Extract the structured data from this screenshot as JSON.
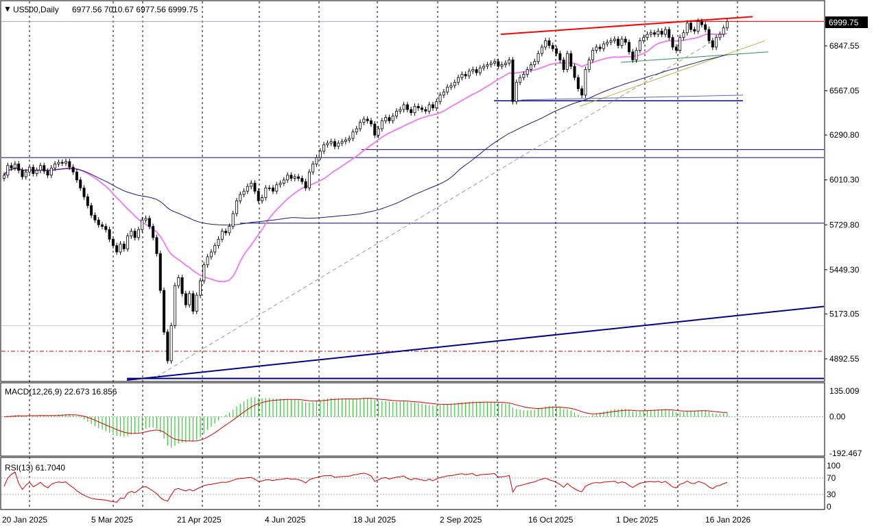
{
  "chart_data": {
    "type": "candlestick",
    "symbol_label": "US500,Daily",
    "ohlc_label": "6977.56 7010.67 6977.56 6999.75",
    "current_price": "6999.75",
    "price_axis_ticks": [
      "6847.55",
      "6567.05",
      "6290.80",
      "6010.30",
      "5729.80",
      "5449.30",
      "5173.05",
      "4892.55"
    ],
    "date_axis_ticks": [
      "20 Jan 2025",
      "5 Mar 2025",
      "21 Apr 2025",
      "4 Jun 2025",
      "18 Jul 2025",
      "2 Sep 2025",
      "16 Oct 2025",
      "1 Dec 2025",
      "16 Jan 2026"
    ],
    "price_range": [
      4760,
      7100
    ],
    "closes": [
      6040,
      6100,
      6085,
      6110,
      6070,
      6030,
      6060,
      6090,
      6050,
      6070,
      6100,
      6065,
      6040,
      6085,
      6110,
      6120,
      6115,
      6125,
      6090,
      6060,
      6010,
      5960,
      5905,
      5850,
      5790,
      5760,
      5730,
      5720,
      5700,
      5640,
      5600,
      5560,
      5610,
      5580,
      5660,
      5690,
      5650,
      5700,
      5760,
      5770,
      5720,
      5650,
      5550,
      5320,
      5060,
      4880,
      5100,
      5350,
      5400,
      5300,
      5230,
      5300,
      5190,
      5290,
      5380,
      5480,
      5530,
      5560,
      5600,
      5640,
      5690,
      5680,
      5720,
      5800,
      5880,
      5920,
      5940,
      5970,
      5990,
      5940,
      5880,
      5900,
      5960,
      5960,
      5940,
      5980,
      5990,
      6010,
      6040,
      6020,
      6030,
      6020,
      6000,
      5960,
      6060,
      6110,
      6150,
      6190,
      6230,
      6240,
      6250,
      6220,
      6240,
      6250,
      6260,
      6270,
      6310,
      6330,
      6370,
      6390,
      6380,
      6360,
      6290,
      6330,
      6380,
      6400,
      6380,
      6410,
      6440,
      6450,
      6480,
      6450,
      6430,
      6470,
      6460,
      6450,
      6440,
      6480,
      6460,
      6500,
      6540,
      6560,
      6590,
      6600,
      6620,
      6650,
      6670,
      6660,
      6690,
      6700,
      6680,
      6710,
      6720,
      6730,
      6740,
      6750,
      6720,
      6730,
      6740,
      6760,
      6500,
      6620,
      6650,
      6670,
      6700,
      6730,
      6750,
      6800,
      6840,
      6880,
      6850,
      6830,
      6800,
      6760,
      6700,
      6800,
      6720,
      6650,
      6580,
      6540,
      6700,
      6760,
      6820,
      6840,
      6830,
      6860,
      6870,
      6880,
      6890,
      6850,
      6890,
      6870,
      6810,
      6760,
      6820,
      6880,
      6900,
      6920,
      6930,
      6920,
      6940,
      6920,
      6950,
      6900,
      6840,
      6820,
      6900,
      6930,
      6990,
      6950,
      6940,
      7000,
      6980,
      6950,
      6880,
      6840,
      6900,
      6920,
      6960,
      7000
    ],
    "ma_pink": {
      "label": "moving average (pink)",
      "color": "#ee82ee"
    },
    "ma_dark": {
      "label": "moving average (dark)",
      "color": "#1a1a6e"
    },
    "levels": [
      6999.75,
      6200,
      6150,
      5740,
      4940,
      4770,
      6505
    ],
    "macd": {
      "label": "MACD(12,26,9) 22.673 16.856",
      "ticks": [
        "135.009",
        "0.00",
        "-192.467"
      ],
      "range": [
        -192.467,
        135.009
      ]
    },
    "rsi": {
      "label": "RSI(13) 61.7040",
      "ticks": [
        "100",
        "70",
        "30",
        "0"
      ],
      "range": [
        0,
        100
      ]
    },
    "colors": {
      "bull": "#006400",
      "bear": "#8b0000",
      "signal": "#cc0000",
      "hist": "#32cd32",
      "trend_red": "#ff0000",
      "trend_blue": "#00008b",
      "trend_green": "#2e8b57",
      "trend_olive": "#b5b54a"
    }
  }
}
